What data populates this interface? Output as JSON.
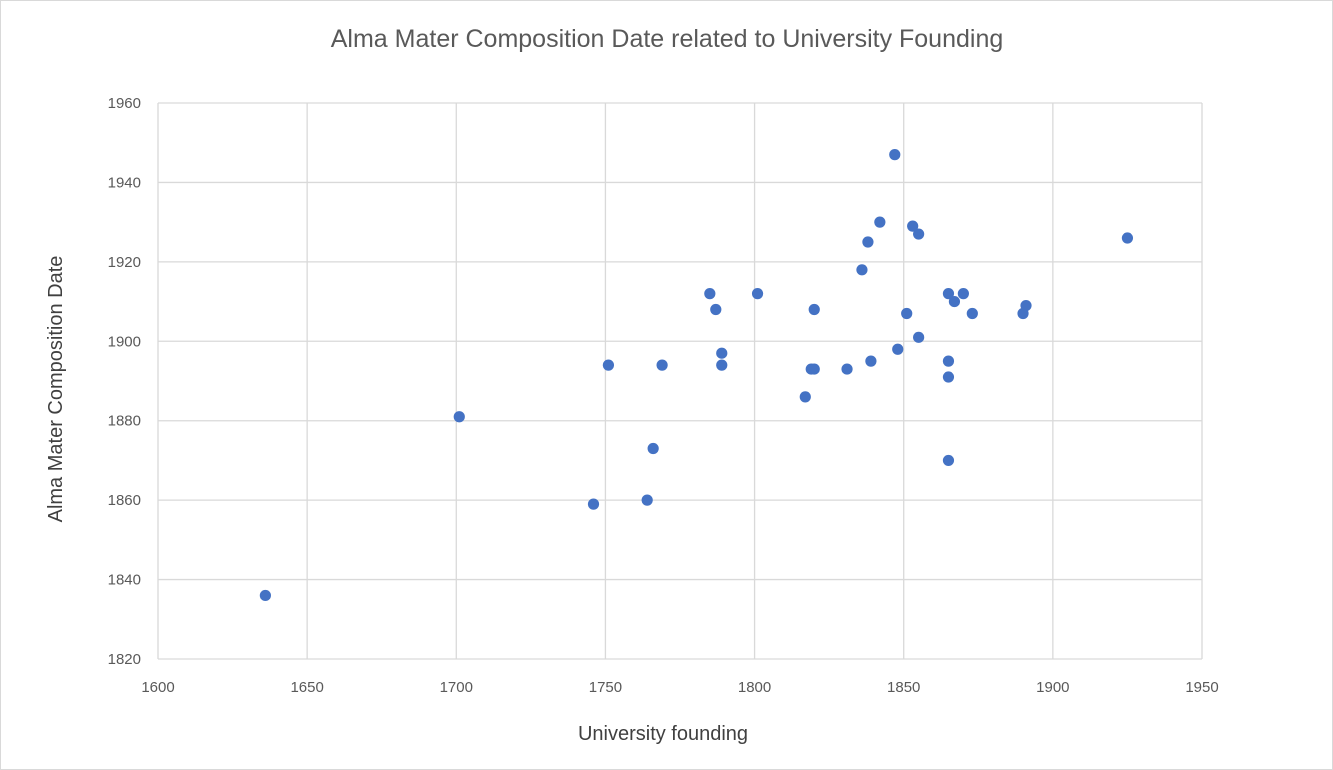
{
  "chart_data": {
    "type": "scatter",
    "title": "Alma Mater Composition Date related to University Founding",
    "xlabel": "University founding",
    "ylabel": "Alma Mater Composition Date",
    "xlim": [
      1600,
      1950
    ],
    "ylim": [
      1820,
      1960
    ],
    "x_ticks": [
      1600,
      1650,
      1700,
      1750,
      1800,
      1850,
      1900,
      1950
    ],
    "y_ticks": [
      1820,
      1840,
      1860,
      1880,
      1900,
      1920,
      1940,
      1960
    ],
    "grid": true,
    "legend": "none",
    "marker_color": "#4472c4",
    "series": [
      {
        "points": [
          {
            "x": 1636,
            "y": 1836
          },
          {
            "x": 1701,
            "y": 1881
          },
          {
            "x": 1746,
            "y": 1859
          },
          {
            "x": 1751,
            "y": 1894
          },
          {
            "x": 1764,
            "y": 1860
          },
          {
            "x": 1766,
            "y": 1873
          },
          {
            "x": 1769,
            "y": 1894
          },
          {
            "x": 1785,
            "y": 1912
          },
          {
            "x": 1787,
            "y": 1908
          },
          {
            "x": 1789,
            "y": 1897
          },
          {
            "x": 1789,
            "y": 1894
          },
          {
            "x": 1801,
            "y": 1912
          },
          {
            "x": 1817,
            "y": 1886
          },
          {
            "x": 1819,
            "y": 1893
          },
          {
            "x": 1820,
            "y": 1893
          },
          {
            "x": 1820,
            "y": 1908
          },
          {
            "x": 1831,
            "y": 1893
          },
          {
            "x": 1836,
            "y": 1918
          },
          {
            "x": 1838,
            "y": 1925
          },
          {
            "x": 1839,
            "y": 1895
          },
          {
            "x": 1842,
            "y": 1930
          },
          {
            "x": 1847,
            "y": 1947
          },
          {
            "x": 1848,
            "y": 1898
          },
          {
            "x": 1851,
            "y": 1907
          },
          {
            "x": 1853,
            "y": 1929
          },
          {
            "x": 1855,
            "y": 1927
          },
          {
            "x": 1855,
            "y": 1901
          },
          {
            "x": 1865,
            "y": 1912
          },
          {
            "x": 1865,
            "y": 1895
          },
          {
            "x": 1865,
            "y": 1891
          },
          {
            "x": 1865,
            "y": 1870
          },
          {
            "x": 1867,
            "y": 1910
          },
          {
            "x": 1870,
            "y": 1912
          },
          {
            "x": 1873,
            "y": 1907
          },
          {
            "x": 1890,
            "y": 1907
          },
          {
            "x": 1891,
            "y": 1909
          },
          {
            "x": 1925,
            "y": 1926
          }
        ]
      }
    ]
  }
}
